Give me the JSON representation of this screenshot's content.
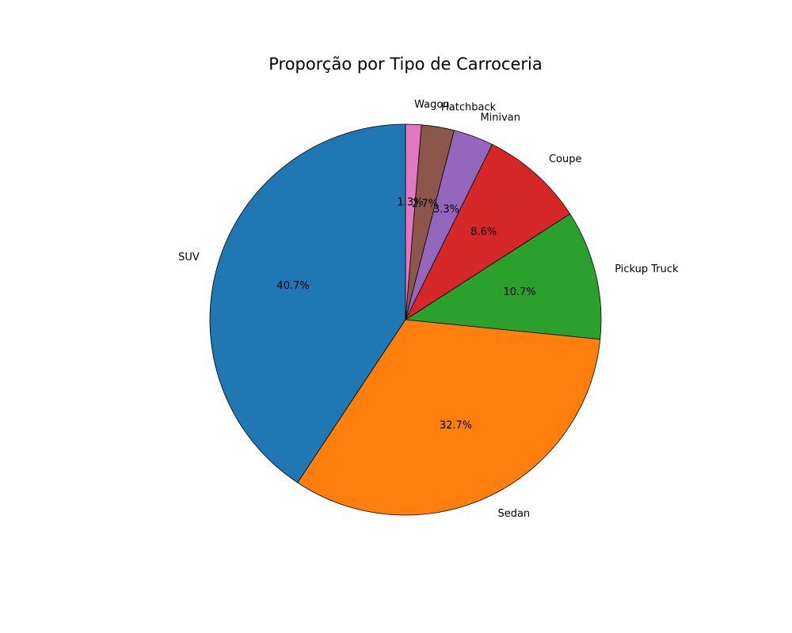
{
  "chart_data": {
    "type": "pie",
    "title": "Proporção por Tipo de Carroceria",
    "start_angle_deg": 90,
    "direction": "counterclockwise",
    "slices": [
      {
        "label": "SUV",
        "value": 40.7,
        "pct_label": "40.7%",
        "color": "#1f77b4"
      },
      {
        "label": "Sedan",
        "value": 32.7,
        "pct_label": "32.7%",
        "color": "#ff7f0e"
      },
      {
        "label": "Pickup Truck",
        "value": 10.7,
        "pct_label": "10.7%",
        "color": "#2ca02c"
      },
      {
        "label": "Coupe",
        "value": 8.6,
        "pct_label": "8.6%",
        "color": "#d62728"
      },
      {
        "label": "Minivan",
        "value": 3.3,
        "pct_label": "3.3%",
        "color": "#9467bd"
      },
      {
        "label": "Hatchback",
        "value": 2.7,
        "pct_label": "2.7%",
        "color": "#8c564b"
      },
      {
        "label": "Wagon",
        "value": 1.3,
        "pct_label": "1.3%",
        "color": "#e377c2"
      }
    ]
  }
}
